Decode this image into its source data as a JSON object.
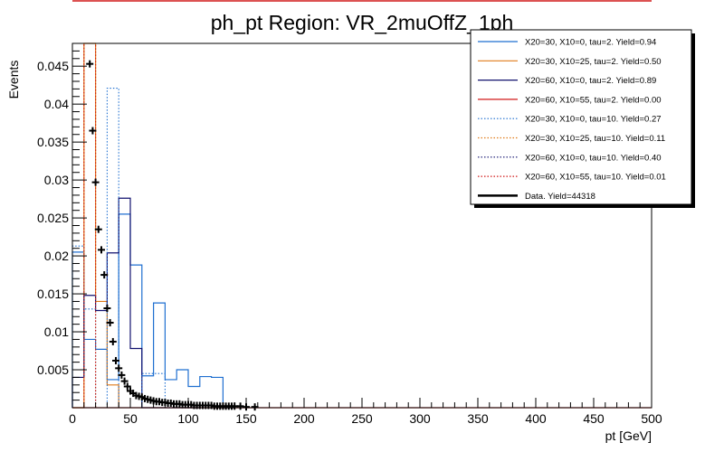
{
  "chart_data": {
    "type": "histogram",
    "title": "ph_pt Region: VR_2muOffZ_1ph",
    "xlabel": "pt [GeV]",
    "ylabel": "Events",
    "xlim": [
      0,
      500
    ],
    "ylim": [
      0,
      0.048
    ],
    "x_ticks": [
      0,
      50,
      100,
      150,
      200,
      250,
      300,
      350,
      400,
      450,
      500
    ],
    "y_ticks": [
      0.005,
      0.01,
      0.015,
      0.02,
      0.025,
      0.03,
      0.035,
      0.04,
      0.045
    ],
    "x_tick_labels": [
      "0",
      "50",
      "100",
      "150",
      "200",
      "250",
      "300",
      "350",
      "400",
      "450",
      "500"
    ],
    "y_tick_labels": [
      "0.005",
      "0.01",
      "0.015",
      "0.02",
      "0.025",
      "0.03",
      "0.035",
      "0.04",
      "0.045"
    ],
    "legend_position": "top-right",
    "series": [
      {
        "name": "X20=30, X10=0, tau=2. Yield=0.94",
        "color": "#1f6fd0",
        "style": "solid",
        "bin_edges": [
          0,
          10,
          20,
          30,
          40,
          50,
          60,
          70,
          80,
          90,
          100,
          110,
          120,
          130,
          140
        ],
        "values": [
          0.0205,
          0.009,
          0.0077,
          0.0037,
          0.0255,
          0.0188,
          0.0042,
          0.0138,
          0.0037,
          0.005,
          0.0028,
          0.0041,
          0.004,
          0.0
        ]
      },
      {
        "name": "X20=30, X10=25, tau=2. Yield=0.50",
        "color": "#e07b1a",
        "style": "solid",
        "bin_edges": [
          0,
          10,
          20,
          30,
          40
        ],
        "values": [
          0.0,
          0.048,
          0.014,
          0.003
        ]
      },
      {
        "name": "X20=60, X10=0, tau=2. Yield=0.89",
        "color": "#10106e",
        "style": "solid",
        "bin_edges": [
          0,
          10,
          20,
          30,
          40,
          50,
          60,
          70,
          80,
          90,
          100,
          110
        ],
        "values": [
          0.004,
          0.0148,
          0.0128,
          0.0204,
          0.0276,
          0.0078,
          0.0,
          0.0,
          0.0,
          0.0,
          0.0
        ]
      },
      {
        "name": "X20=60, X10=55, tau=2. Yield=0.00",
        "color": "#d01818",
        "style": "solid",
        "bin_edges": [
          0,
          10,
          20,
          30,
          40,
          50,
          60,
          70,
          80,
          90,
          100,
          110,
          120,
          130,
          140,
          150,
          160,
          170,
          180,
          190,
          200,
          210,
          220,
          230,
          240,
          250,
          260,
          270,
          280,
          290,
          300,
          310,
          320,
          330,
          340,
          350,
          360,
          370,
          380,
          390,
          400,
          410,
          420,
          430,
          440,
          450,
          460,
          470,
          480,
          490,
          500
        ],
        "values": [
          0,
          0,
          0,
          0,
          0,
          0,
          0,
          0,
          0,
          0,
          0,
          0,
          0,
          0,
          0,
          0,
          0,
          0,
          0,
          0,
          0,
          0,
          0,
          0,
          0,
          0,
          0,
          0,
          0,
          0,
          0,
          0,
          0,
          0,
          0,
          0,
          0,
          0,
          0,
          0,
          0,
          0,
          0,
          0,
          0,
          0,
          0,
          0,
          0,
          0
        ]
      },
      {
        "name": "X20=30, X10=0, tau=10. Yield=0.27",
        "color": "#1f6fd0",
        "style": "dotted",
        "bin_edges": [
          0,
          10,
          20,
          30,
          40,
          50,
          60,
          70,
          80,
          90,
          100
        ],
        "values": [
          0.0213,
          0.013,
          0.0,
          0.0421,
          0.0,
          0.0,
          0.0045,
          0.0045,
          0.0,
          0.0
        ]
      },
      {
        "name": "X20=30, X10=25, tau=10. Yield=0.11",
        "color": "#e07b1a",
        "style": "dotted",
        "bin_edges": [
          0,
          10,
          20,
          30
        ],
        "values": [
          0.0,
          0.048,
          0.0
        ]
      },
      {
        "name": "X20=60, X10=0, tau=10. Yield=0.40",
        "color": "#10106e",
        "style": "dotted",
        "bin_edges": [
          0,
          10,
          20,
          30,
          40,
          50,
          60,
          70,
          80,
          90,
          100
        ],
        "values": [
          0.0,
          0.0,
          0.0,
          0.0,
          0.0,
          0.0,
          0.0,
          0.0,
          0.0,
          0.0
        ]
      },
      {
        "name": "X20=60, X10=55, tau=10. Yield=0.01",
        "color": "#d01818",
        "style": "dotted",
        "bin_edges": [
          0,
          10,
          20,
          30
        ],
        "values": [
          0.0,
          0.048,
          0.0
        ]
      },
      {
        "name": "Data. Yield=44318",
        "color": "#000000",
        "style": "markers",
        "x": [
          15,
          17.5,
          20,
          22.5,
          25,
          27.5,
          30,
          32.5,
          35,
          37.5,
          40,
          42.5,
          45,
          47.5,
          50,
          52.5,
          55,
          57.5,
          60,
          62.5,
          65,
          67.5,
          70,
          72.5,
          75,
          77.5,
          80,
          82.5,
          85,
          87.5,
          90,
          92.5,
          95,
          97.5,
          100,
          102.5,
          105,
          107.5,
          110,
          112.5,
          115,
          117.5,
          120,
          122.5,
          125,
          127.5,
          130,
          132.5,
          135,
          137.5,
          140,
          145,
          150,
          157.5
        ],
        "y": [
          0.0453,
          0.0365,
          0.0297,
          0.0235,
          0.0208,
          0.0175,
          0.0131,
          0.0112,
          0.0087,
          0.0062,
          0.0052,
          0.0043,
          0.0035,
          0.0028,
          0.0022,
          0.0019,
          0.0016,
          0.0015,
          0.0014,
          0.0012,
          0.0011,
          0.001,
          0.0009,
          0.0008,
          0.0008,
          0.0007,
          0.0007,
          0.0006,
          0.0006,
          0.0005,
          0.0005,
          0.0005,
          0.0004,
          0.0004,
          0.0004,
          0.0004,
          0.0003,
          0.0003,
          0.0003,
          0.0003,
          0.0003,
          0.0003,
          0.0003,
          0.0002,
          0.0002,
          0.0002,
          0.0002,
          0.0002,
          0.0002,
          0.0002,
          0.0002,
          0.0002,
          0.0001,
          0.0001
        ]
      }
    ]
  }
}
